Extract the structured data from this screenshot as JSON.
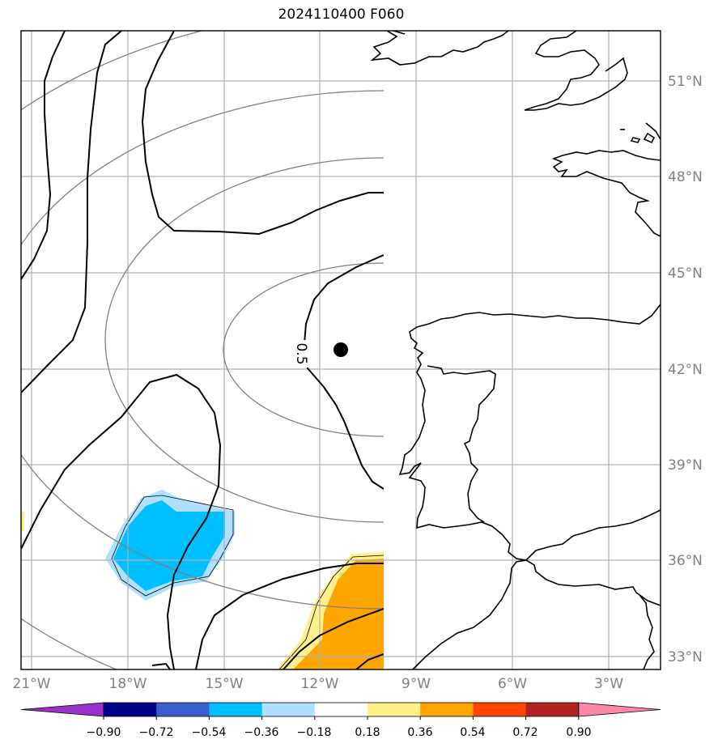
{
  "title": "2024110400 F060",
  "lat_labels": [
    "51°N",
    "48°N",
    "45°N",
    "42°N",
    "39°N",
    "36°N",
    "33°N"
  ],
  "lon_labels": [
    "21°W",
    "18°W",
    "15°W",
    "12°W",
    "9°W",
    "6°W",
    "3°W"
  ],
  "contour_label": "0.5",
  "colorbar": {
    "ticks": [
      "−0.90",
      "−0.72",
      "−0.54",
      "−0.36",
      "−0.18",
      "0.18",
      "0.36",
      "0.54",
      "0.72",
      "0.90"
    ],
    "colors": [
      "#9932cc",
      "#00008b",
      "#3a5fcd",
      "#00bfff",
      "#b0e0ff",
      "#ffffff",
      "#fff08c",
      "#ffa500",
      "#ff4500",
      "#b22222",
      "#ff88aa"
    ]
  },
  "marker": {
    "name": "storm-center",
    "lat": 42.6,
    "lon": -11.4
  }
}
